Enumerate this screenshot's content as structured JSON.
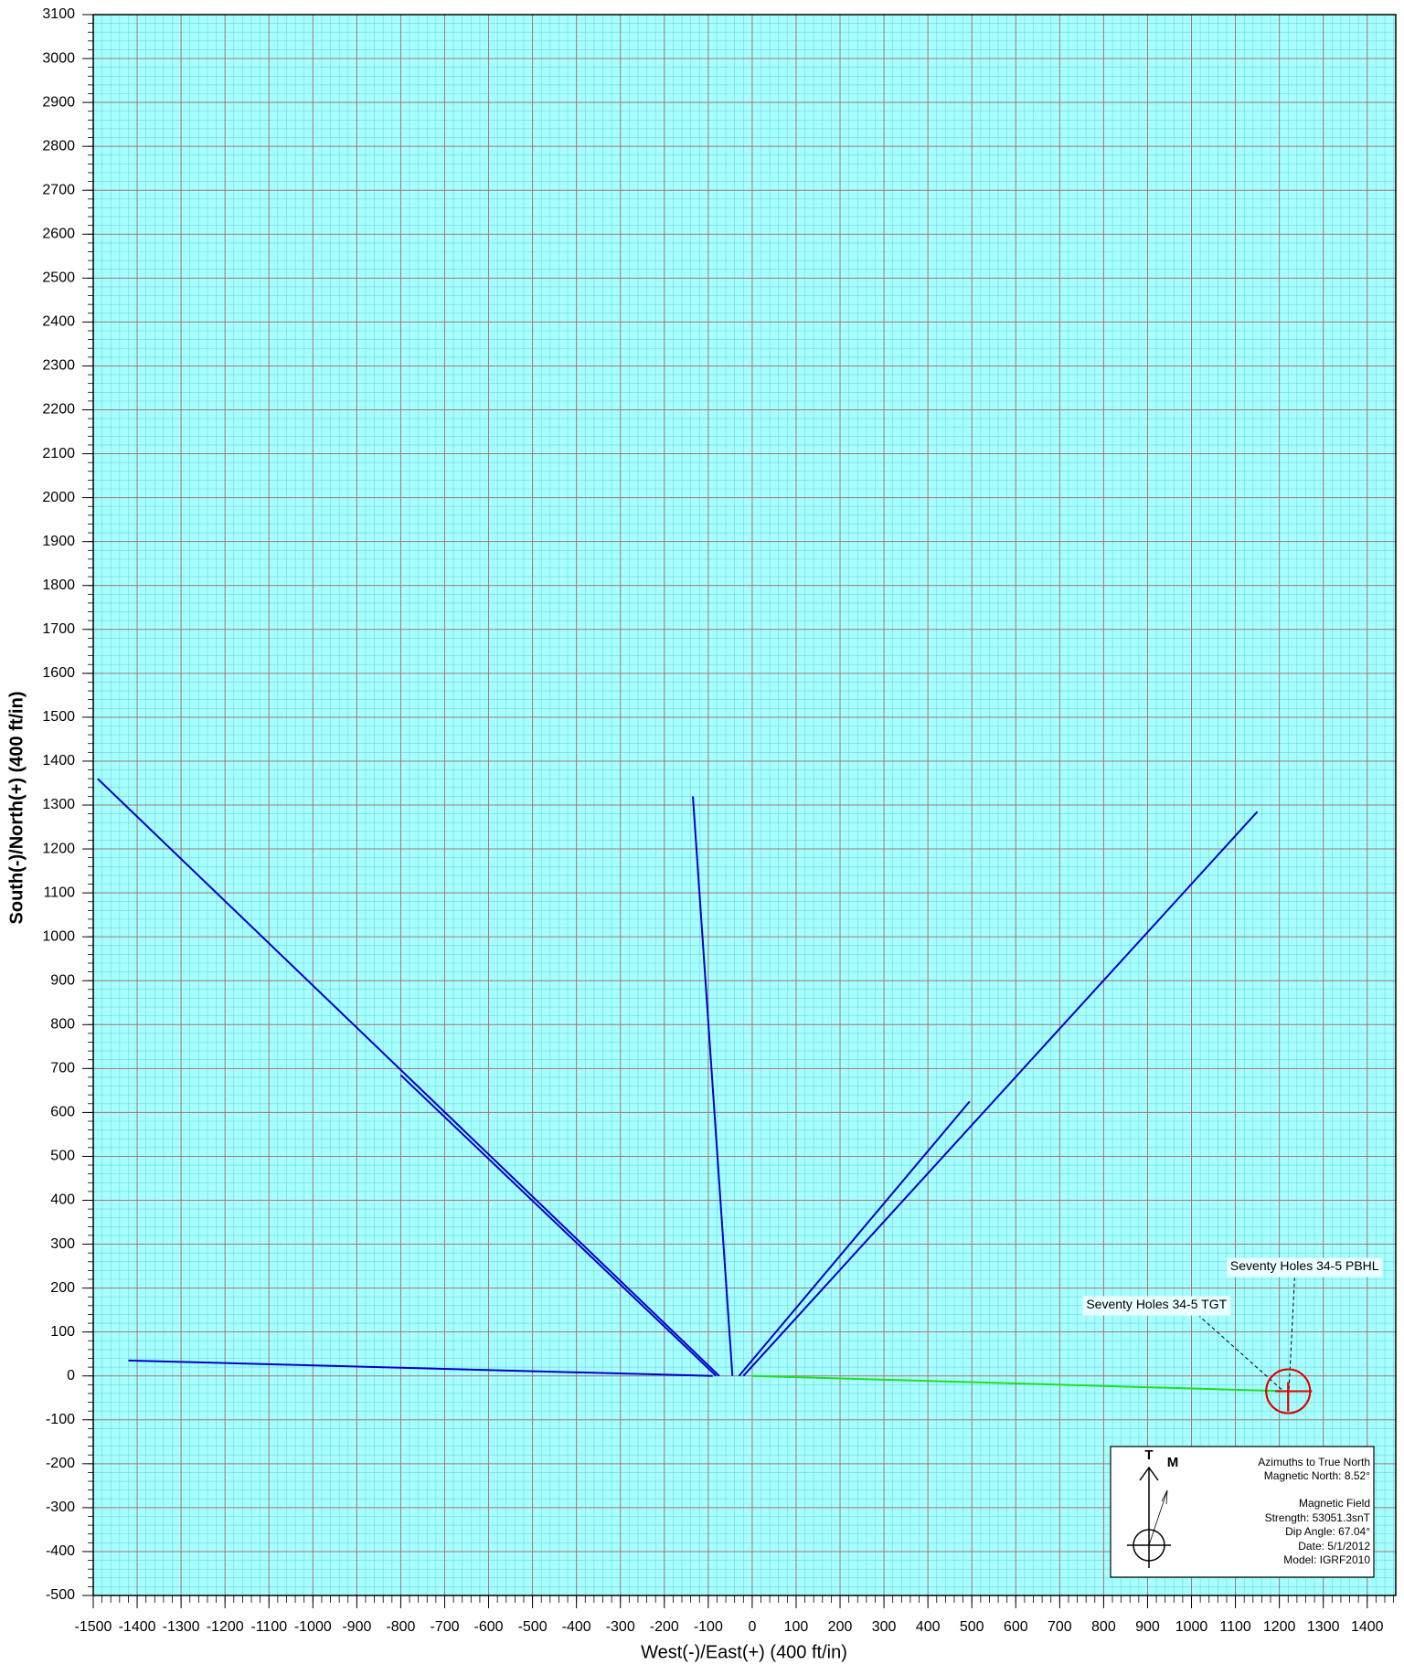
{
  "chart_data": {
    "type": "line",
    "xlabel": "West(-)/East(+) (400 ft/in)",
    "ylabel": "South(-)/North(+) (400 ft/in)",
    "xlim": [
      -1500,
      1465
    ],
    "ylim": [
      -500,
      3100
    ],
    "xticks": [
      -1500,
      -1400,
      -1300,
      -1200,
      -1100,
      -1000,
      -900,
      -800,
      -700,
      -600,
      -500,
      -400,
      -300,
      -200,
      -100,
      0,
      100,
      200,
      300,
      400,
      500,
      600,
      700,
      800,
      900,
      1000,
      1100,
      1200,
      1300,
      1400
    ],
    "yticks": [
      -500,
      -400,
      -300,
      -200,
      -100,
      0,
      100,
      200,
      300,
      400,
      500,
      600,
      700,
      800,
      900,
      1000,
      1100,
      1200,
      1300,
      1400,
      1500,
      1600,
      1700,
      1800,
      1900,
      2000,
      2100,
      2200,
      2300,
      2400,
      2500,
      2600,
      2700,
      2800,
      2900,
      3000,
      3100
    ],
    "grid": true,
    "series": [
      {
        "color": "#0000cc",
        "x": [
          -1420,
          -90
        ],
        "values": [
          35,
          0
        ]
      },
      {
        "color": "#0000cc",
        "x": [
          -1490,
          -75
        ],
        "values": [
          1360,
          0
        ]
      },
      {
        "color": "#0000cc",
        "x": [
          -800,
          -82
        ],
        "values": [
          685,
          0
        ]
      },
      {
        "color": "#0000cc",
        "x": [
          -135,
          -45
        ],
        "values": [
          1320,
          0
        ]
      },
      {
        "color": "#0000cc",
        "x": [
          -30,
          495
        ],
        "values": [
          0,
          625
        ]
      },
      {
        "color": "#0000cc",
        "x": [
          -20,
          1150
        ],
        "values": [
          0,
          1285
        ]
      },
      {
        "color": "#22dd22",
        "x": [
          0,
          1220
        ],
        "values": [
          0,
          -35
        ]
      }
    ],
    "targets": [
      {
        "label": "Seventy Holes 34-5 PBHL",
        "x": 1220,
        "y": -35,
        "color": "#e00000"
      },
      {
        "label": "Seventy Holes 34-5 TGT",
        "x": 1220,
        "y": -35,
        "color": "#e00000"
      }
    ],
    "legend_box": {
      "true_mark": "T",
      "mag_mark": "M",
      "lines": [
        "Azimuths to True North",
        "Magnetic North: 8.52°",
        "Magnetic Field",
        "Strength: 53051.3snT",
        "Dip Angle: 67.04°",
        "Date: 5/1/2012",
        "Model: IGRF2010"
      ]
    }
  }
}
